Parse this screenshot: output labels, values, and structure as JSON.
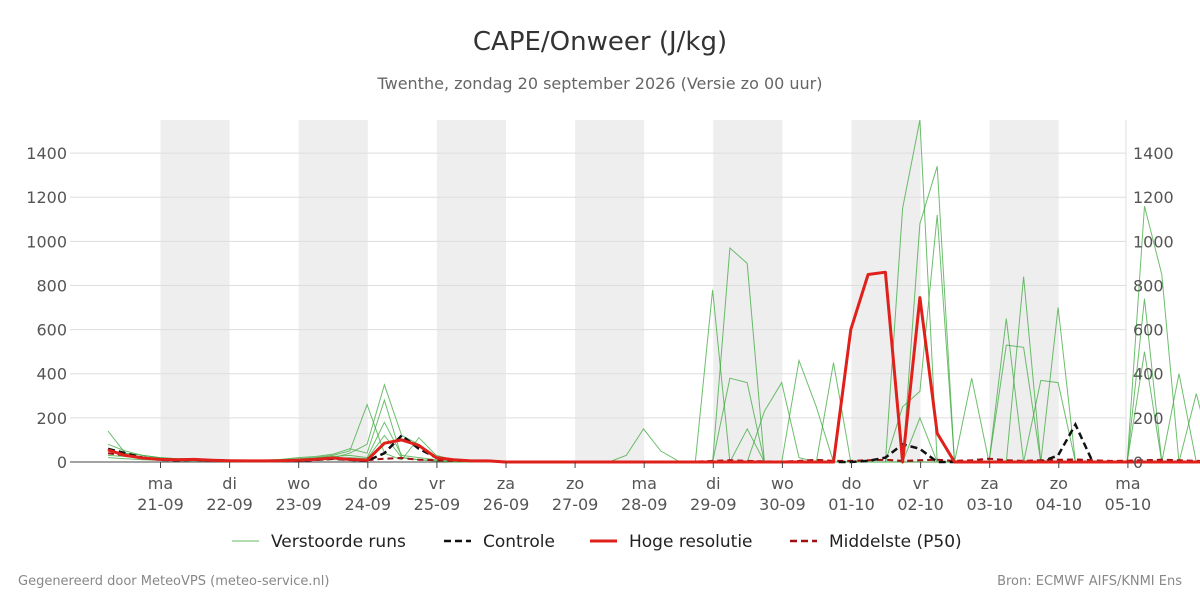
{
  "chart_data": {
    "type": "line",
    "title": "CAPE/Onweer (J/kg)",
    "subtitle": "Twenthe, zondag 20 september 2026 (Versie zo 00 uur)",
    "xlabel": "",
    "ylabel": "",
    "ylim": [
      0,
      1550
    ],
    "yticks": [
      0,
      200,
      400,
      600,
      800,
      1000,
      1200,
      1400
    ],
    "grid": true,
    "legend_position": "bottom-center",
    "x_start": "2026-09-20 06:00",
    "x_step_hours": 6,
    "x_ticks": [
      {
        "day": "ma",
        "date": "21-09"
      },
      {
        "day": "di",
        "date": "22-09"
      },
      {
        "day": "wo",
        "date": "23-09"
      },
      {
        "day": "do",
        "date": "24-09"
      },
      {
        "day": "vr",
        "date": "25-09"
      },
      {
        "day": "za",
        "date": "26-09"
      },
      {
        "day": "zo",
        "date": "27-09"
      },
      {
        "day": "ma",
        "date": "28-09"
      },
      {
        "day": "di",
        "date": "29-09"
      },
      {
        "day": "wo",
        "date": "30-09"
      },
      {
        "day": "do",
        "date": "01-10"
      },
      {
        "day": "vr",
        "date": "02-10"
      },
      {
        "day": "za",
        "date": "03-10"
      },
      {
        "day": "zo",
        "date": "04-10"
      },
      {
        "day": "ma",
        "date": "05-10"
      }
    ],
    "shaded_days": [
      "21-09",
      "23-09",
      "25-09",
      "27-09",
      "29-09",
      "01-10",
      "03-10"
    ],
    "series": [
      {
        "name": "Verstoorde runs",
        "color": "#3ca83c",
        "style": "ensemble"
      },
      {
        "name": "Controle",
        "color": "#111111",
        "style": "dashed",
        "values": [
          60,
          40,
          20,
          10,
          8,
          10,
          8,
          6,
          5,
          5,
          5,
          5,
          10,
          15,
          10,
          5,
          40,
          120,
          60,
          20,
          10,
          5,
          5,
          0,
          0,
          0,
          0,
          0,
          0,
          0,
          0,
          0,
          0,
          0,
          0,
          0,
          0,
          0,
          0,
          0,
          0,
          0,
          0,
          0,
          5,
          20,
          80,
          60,
          0,
          0,
          0,
          0,
          0,
          0,
          0,
          30,
          170,
          0,
          0,
          0,
          0,
          0,
          0,
          0,
          0,
          0,
          0,
          0,
          0,
          0,
          0,
          0,
          0,
          0,
          0,
          0,
          0,
          0,
          0,
          0,
          0,
          0,
          0,
          0,
          0,
          5,
          10,
          0,
          0
        ]
      },
      {
        "name": "Hoge resolutie",
        "color": "#e0201b",
        "style": "solid",
        "values": [
          55,
          30,
          18,
          12,
          10,
          12,
          8,
          6,
          5,
          5,
          6,
          8,
          12,
          18,
          12,
          8,
          85,
          100,
          75,
          20,
          10,
          5,
          5,
          0,
          0,
          0,
          0,
          0,
          0,
          0,
          0,
          0,
          0,
          0,
          0,
          0,
          0,
          0,
          0,
          0,
          0,
          0,
          0,
          600,
          850,
          860,
          0,
          745,
          130,
          0,
          0,
          0,
          0,
          0,
          0,
          0,
          0,
          0,
          0,
          0,
          0,
          0,
          0,
          0,
          0,
          0,
          0,
          0,
          0,
          0,
          0,
          0,
          0,
          0,
          0,
          0,
          0,
          0,
          0,
          0,
          0,
          0,
          0,
          0,
          0,
          0,
          0,
          0,
          0
        ]
      },
      {
        "name": "Middelste (P50)",
        "color": "#a01010",
        "style": "dashed",
        "values": [
          40,
          30,
          20,
          12,
          10,
          10,
          8,
          6,
          5,
          5,
          6,
          8,
          10,
          14,
          12,
          8,
          15,
          18,
          10,
          8,
          5,
          5,
          3,
          2,
          0,
          0,
          0,
          0,
          0,
          0,
          0,
          0,
          0,
          0,
          2,
          5,
          8,
          5,
          3,
          2,
          5,
          10,
          5,
          5,
          8,
          10,
          5,
          8,
          10,
          5,
          8,
          15,
          8,
          5,
          8,
          10,
          12,
          8,
          5,
          6,
          8,
          10,
          8,
          5,
          6,
          8,
          5,
          5,
          6,
          8,
          10,
          8,
          5,
          6,
          5,
          5,
          8,
          10,
          5,
          8,
          5,
          5,
          6,
          5,
          5,
          5,
          5,
          5,
          5
        ]
      },
      {
        "name": "",
        "color": "#3ca83c",
        "style": "ensemble-member",
        "values": [
          140,
          40,
          15,
          10,
          8,
          10,
          8,
          6,
          5,
          5,
          6,
          8,
          12,
          18,
          40,
          80,
          350,
          120,
          80,
          20,
          10,
          5,
          0,
          0,
          0,
          0,
          0,
          0,
          0,
          0,
          30,
          150,
          50,
          5,
          0,
          780,
          0,
          0,
          230,
          360,
          20,
          0,
          0,
          0,
          0,
          0,
          1150,
          1550,
          0,
          0,
          0,
          0,
          0,
          0,
          0,
          0,
          0,
          0,
          0,
          0,
          1160,
          850,
          0,
          0,
          0,
          0,
          0,
          0,
          0,
          0,
          0,
          0,
          0,
          0,
          0,
          0,
          0,
          0,
          0,
          0,
          0,
          0,
          0,
          0,
          0,
          0,
          0,
          0,
          0
        ]
      },
      {
        "name": "",
        "color": "#3ca83c",
        "style": "ensemble-member",
        "values": [
          80,
          50,
          30,
          20,
          15,
          15,
          10,
          8,
          5,
          5,
          10,
          15,
          20,
          30,
          50,
          260,
          40,
          10,
          110,
          30,
          10,
          5,
          0,
          0,
          0,
          0,
          0,
          0,
          0,
          0,
          0,
          0,
          0,
          0,
          0,
          0,
          970,
          900,
          0,
          0,
          0,
          0,
          450,
          0,
          0,
          0,
          0,
          1080,
          1340,
          0,
          0,
          0,
          0,
          840,
          0,
          0,
          0,
          0,
          0,
          0,
          740,
          0,
          0,
          0,
          0,
          0,
          0,
          0,
          0,
          0,
          0,
          0,
          0,
          0,
          0,
          960,
          0,
          0,
          0,
          0,
          0,
          0,
          0,
          0,
          0,
          0,
          0,
          0
        ]
      },
      {
        "name": "",
        "color": "#3ca83c",
        "style": "ensemble-member",
        "values": [
          50,
          40,
          30,
          20,
          15,
          12,
          10,
          8,
          6,
          8,
          12,
          20,
          25,
          35,
          60,
          40,
          280,
          20,
          10,
          5,
          0,
          0,
          0,
          0,
          0,
          0,
          0,
          0,
          0,
          0,
          0,
          0,
          0,
          0,
          0,
          0,
          380,
          360,
          0,
          0,
          0,
          0,
          0,
          0,
          0,
          0,
          250,
          320,
          1120,
          0,
          0,
          0,
          530,
          520,
          0,
          700,
          0,
          0,
          0,
          0,
          0,
          0,
          0,
          0,
          0,
          0,
          0,
          0,
          850,
          820,
          0,
          0,
          0,
          0,
          0,
          0,
          0,
          0,
          650,
          0,
          0,
          0,
          0,
          0,
          0,
          0,
          0,
          0,
          0
        ]
      },
      {
        "name": "",
        "color": "#3ca83c",
        "style": "ensemble-member",
        "values": [
          30,
          25,
          20,
          15,
          10,
          10,
          8,
          6,
          5,
          5,
          8,
          12,
          18,
          25,
          30,
          20,
          180,
          30,
          20,
          10,
          5,
          0,
          0,
          0,
          0,
          0,
          0,
          0,
          0,
          0,
          0,
          0,
          0,
          0,
          0,
          0,
          0,
          150,
          0,
          0,
          460,
          250,
          0,
          0,
          0,
          0,
          0,
          200,
          0,
          0,
          380,
          0,
          650,
          0,
          0,
          0,
          0,
          0,
          0,
          0,
          500,
          0,
          400,
          0,
          0,
          0,
          0,
          0,
          0,
          0,
          490,
          0,
          0,
          0,
          0,
          0,
          0,
          0,
          0,
          0,
          0,
          380,
          340,
          0,
          0,
          0,
          350,
          0,
          310
        ]
      },
      {
        "name": "",
        "color": "#3ca83c",
        "style": "ensemble-member",
        "values": [
          20,
          15,
          10,
          8,
          6,
          6,
          5,
          4,
          3,
          3,
          5,
          8,
          10,
          15,
          20,
          15,
          120,
          20,
          10,
          5,
          0,
          0,
          0,
          0,
          0,
          0,
          0,
          0,
          0,
          0,
          0,
          0,
          0,
          0,
          0,
          0,
          0,
          0,
          0,
          0,
          0,
          0,
          0,
          0,
          0,
          0,
          0,
          0,
          0,
          0,
          0,
          0,
          0,
          0,
          370,
          360,
          0,
          0,
          0,
          0,
          0,
          0,
          0,
          310,
          0,
          0,
          0,
          0,
          230,
          0,
          0,
          0,
          0,
          0,
          0,
          0,
          0,
          0,
          0,
          0,
          0,
          0,
          0,
          0,
          0,
          0,
          0,
          0,
          0
        ]
      }
    ]
  },
  "legend": [
    {
      "label": "Verstoorde runs",
      "color": "#3ca83c",
      "style": "thin"
    },
    {
      "label": "Controle",
      "color": "#111111",
      "style": "dashed"
    },
    {
      "label": "Hoge resolutie",
      "color": "#e0201b",
      "style": "solid"
    },
    {
      "label": "Middelste (P50)",
      "color": "#a01010",
      "style": "dashed"
    }
  ],
  "footer": {
    "left": "Gegenereerd door MeteoVPS (meteo-service.nl)",
    "right": "Bron: ECMWF AIFS/KNMI Ens"
  }
}
